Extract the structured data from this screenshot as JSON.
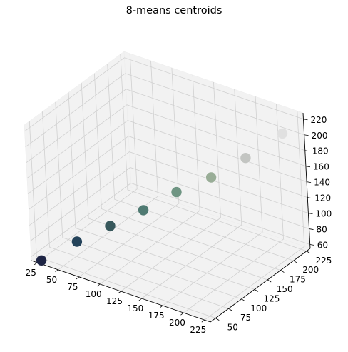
{
  "chart_data": {
    "type": "scatter",
    "projection": "3d",
    "title": "8-means centroids",
    "xlabel": "",
    "ylabel": "",
    "zlabel": "",
    "xlim": [
      18,
      232
    ],
    "ylim": [
      40,
      232
    ],
    "zlim": [
      55,
      228
    ],
    "x_ticks": [
      "25",
      "50",
      "75",
      "100",
      "125",
      "150",
      "175",
      "200",
      "225"
    ],
    "y_ticks": [
      "50",
      "75",
      "100",
      "125",
      "150",
      "175",
      "200",
      "225"
    ],
    "z_ticks": [
      "60",
      "80",
      "100",
      "120",
      "140",
      "160",
      "180",
      "200",
      "220"
    ],
    "grid": true,
    "points": [
      {
        "x": 27,
        "y": 45,
        "z": 56,
        "color": "#1d2444"
      },
      {
        "x": 55,
        "y": 70,
        "z": 78,
        "color": "#24435a"
      },
      {
        "x": 80,
        "y": 95,
        "z": 95,
        "color": "#37585c"
      },
      {
        "x": 105,
        "y": 120,
        "z": 112,
        "color": "#4f7a72"
      },
      {
        "x": 130,
        "y": 145,
        "z": 132,
        "color": "#6f9583"
      },
      {
        "x": 160,
        "y": 165,
        "z": 152,
        "color": "#99ad97"
      },
      {
        "x": 190,
        "y": 185,
        "z": 178,
        "color": "#c3c5c2"
      },
      {
        "x": 220,
        "y": 210,
        "z": 208,
        "color": "#e0e0e0"
      }
    ]
  }
}
